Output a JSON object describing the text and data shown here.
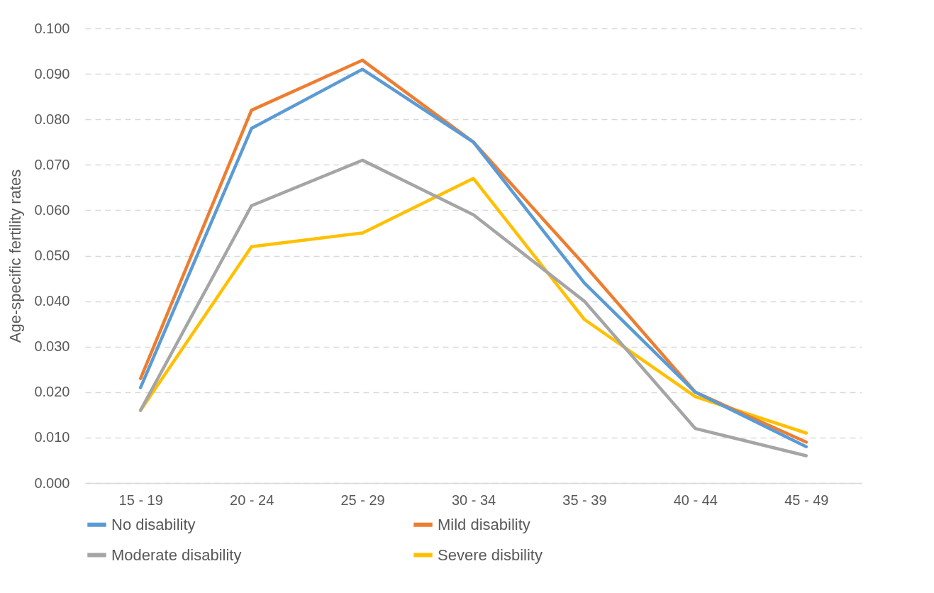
{
  "chart_data": {
    "type": "line",
    "ylabel": "Age-specific fertility rates",
    "categories": [
      "15 - 19",
      "20 - 24",
      "25 - 29",
      "30 - 34",
      "35 - 39",
      "40 - 44",
      "45 - 49"
    ],
    "series": [
      {
        "name": "No disability",
        "color": "#5b9bd5",
        "values": [
          0.021,
          0.078,
          0.091,
          0.075,
          0.044,
          0.02,
          0.008
        ]
      },
      {
        "name": "Mild disability",
        "color": "#ed7d31",
        "values": [
          0.023,
          0.082,
          0.093,
          0.075,
          0.048,
          0.02,
          0.009
        ]
      },
      {
        "name": "Moderate disability",
        "color": "#a5a5a5",
        "values": [
          0.016,
          0.061,
          0.071,
          0.059,
          0.04,
          0.012,
          0.006
        ]
      },
      {
        "name": "Severe disbility",
        "color": "#ffc000",
        "values": [
          0.016,
          0.052,
          0.055,
          0.067,
          0.036,
          0.019,
          0.011
        ]
      }
    ],
    "ylim": [
      0,
      0.1
    ],
    "yticks": [
      {
        "value": 0,
        "label": "0.000"
      },
      {
        "value": 0.01,
        "label": "0.010"
      },
      {
        "value": 0.02,
        "label": "0.020"
      },
      {
        "value": 0.03,
        "label": "0.030"
      },
      {
        "value": 0.04,
        "label": "0.040"
      },
      {
        "value": 0.05,
        "label": "0.050"
      },
      {
        "value": 0.06,
        "label": "0.060"
      },
      {
        "value": 0.07,
        "label": "0.070"
      },
      {
        "value": 0.08,
        "label": "0.080"
      },
      {
        "value": 0.09,
        "label": "0.090"
      },
      {
        "value": 0.1,
        "label": "0.100"
      }
    ],
    "grid": "y",
    "legend": "bottom",
    "marker": "none",
    "line_style": "solid"
  }
}
